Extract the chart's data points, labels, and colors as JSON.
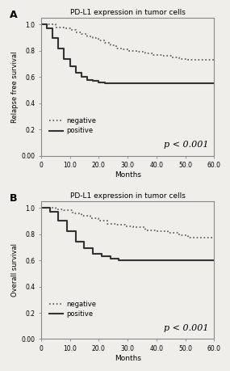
{
  "title": "PD-L1 expression in tumor cells",
  "panel_A_label": "A",
  "panel_B_label": "B",
  "ylabel_A": "Relapse free survival",
  "ylabel_B": "Overall survival",
  "xlabel": "Months",
  "xlim": [
    0,
    60
  ],
  "ylim": [
    0.0,
    1.05
  ],
  "xticks": [
    0,
    10,
    20,
    30,
    40,
    50,
    60
  ],
  "yticks": [
    0.0,
    0.2,
    0.4,
    0.6,
    0.8,
    1.0
  ],
  "xtick_labels": [
    "0",
    "10.0",
    "20.0",
    "30.0",
    "40.0",
    "50.0",
    "60.0"
  ],
  "ytick_labels": [
    "0.00",
    "0.2",
    "0.4",
    "0.6",
    "0.8",
    "1.0"
  ],
  "pvalue": "p < 0.001",
  "background_color": "#f0eeeb",
  "neg_color": "#555555",
  "pos_color": "#333333",
  "neg_A_x": [
    0,
    5,
    5,
    8,
    8,
    10,
    10,
    12,
    12,
    14,
    14,
    16,
    16,
    18,
    18,
    20,
    20,
    22,
    22,
    24,
    24,
    26,
    26,
    28,
    28,
    30,
    30,
    33,
    33,
    36,
    36,
    39,
    39,
    42,
    42,
    45,
    45,
    48,
    48,
    51,
    51,
    60
  ],
  "neg_A_y": [
    1.0,
    1.0,
    0.98,
    0.98,
    0.97,
    0.97,
    0.96,
    0.96,
    0.94,
    0.94,
    0.93,
    0.93,
    0.91,
    0.91,
    0.9,
    0.9,
    0.88,
    0.88,
    0.86,
    0.86,
    0.84,
    0.84,
    0.82,
    0.82,
    0.81,
    0.81,
    0.8,
    0.8,
    0.79,
    0.79,
    0.78,
    0.78,
    0.77,
    0.77,
    0.76,
    0.76,
    0.75,
    0.75,
    0.74,
    0.74,
    0.73,
    0.73
  ],
  "pos_A_x": [
    0,
    2,
    2,
    4,
    4,
    6,
    6,
    8,
    8,
    10,
    10,
    12,
    12,
    14,
    14,
    16,
    16,
    18,
    18,
    20,
    20,
    22,
    22,
    25,
    25,
    28,
    28,
    60
  ],
  "pos_A_y": [
    1.0,
    1.0,
    0.97,
    0.97,
    0.9,
    0.9,
    0.82,
    0.82,
    0.74,
    0.74,
    0.68,
    0.68,
    0.63,
    0.63,
    0.6,
    0.6,
    0.58,
    0.58,
    0.57,
    0.57,
    0.56,
    0.56,
    0.55,
    0.55,
    0.55,
    0.55,
    0.55,
    0.55
  ],
  "neg_B_x": [
    0,
    5,
    5,
    8,
    8,
    11,
    11,
    14,
    14,
    17,
    17,
    20,
    20,
    23,
    23,
    26,
    26,
    29,
    29,
    32,
    32,
    36,
    36,
    40,
    40,
    44,
    44,
    48,
    48,
    51,
    51,
    60
  ],
  "neg_B_y": [
    1.0,
    1.0,
    0.99,
    0.99,
    0.98,
    0.98,
    0.96,
    0.96,
    0.94,
    0.94,
    0.92,
    0.92,
    0.9,
    0.9,
    0.88,
    0.88,
    0.87,
    0.87,
    0.86,
    0.86,
    0.85,
    0.85,
    0.83,
    0.83,
    0.82,
    0.82,
    0.81,
    0.81,
    0.79,
    0.79,
    0.77,
    0.77
  ],
  "pos_B_x": [
    0,
    3,
    3,
    6,
    6,
    9,
    9,
    12,
    12,
    15,
    15,
    18,
    18,
    21,
    21,
    24,
    24,
    27,
    27,
    30,
    30,
    60
  ],
  "pos_B_y": [
    1.0,
    1.0,
    0.97,
    0.97,
    0.9,
    0.9,
    0.82,
    0.82,
    0.74,
    0.74,
    0.69,
    0.69,
    0.65,
    0.65,
    0.63,
    0.63,
    0.61,
    0.61,
    0.6,
    0.6,
    0.6,
    0.6
  ]
}
